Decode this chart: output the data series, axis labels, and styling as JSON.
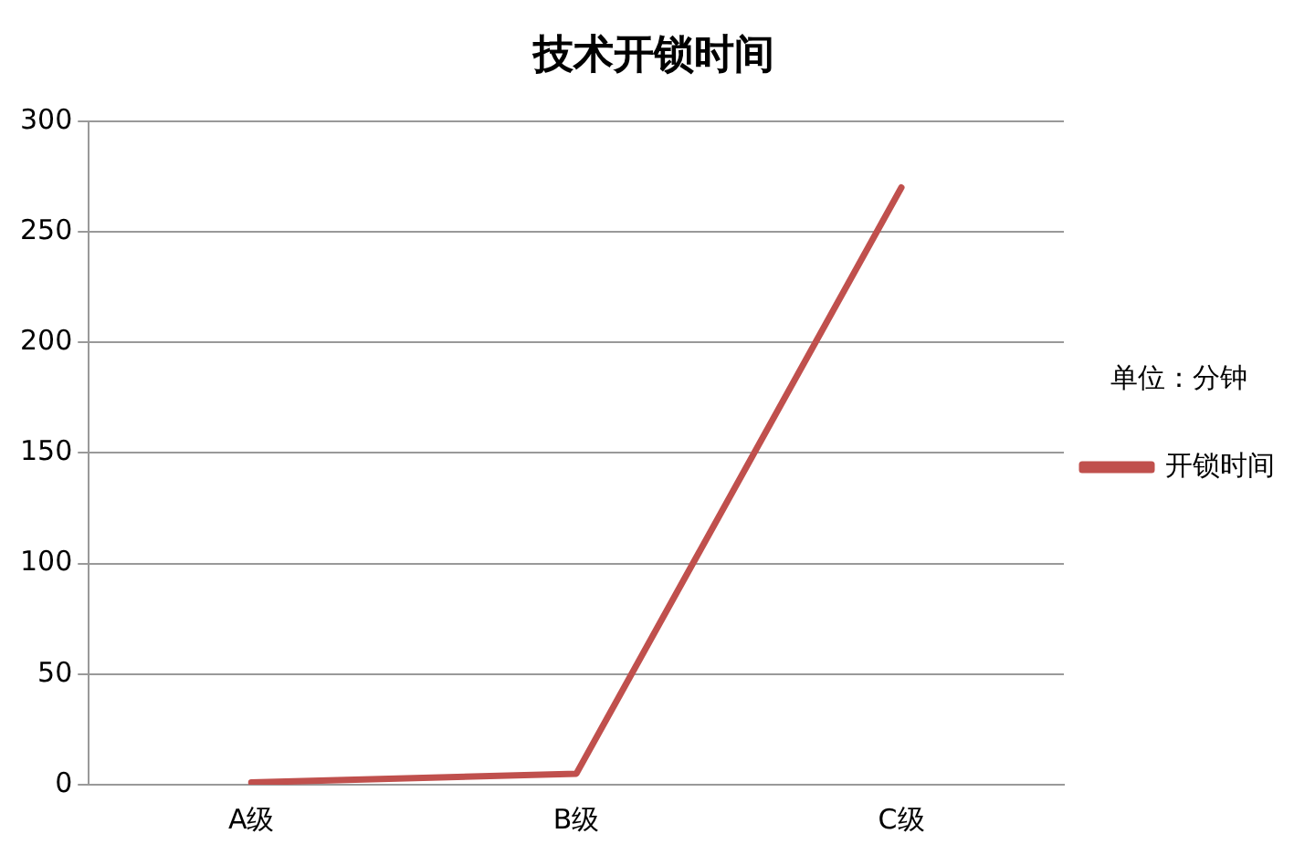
{
  "chart_data": {
    "type": "line",
    "title": "技术开锁时间",
    "legend_title": "单位：分钟",
    "categories": [
      "A级",
      "B级",
      "C级"
    ],
    "series": [
      {
        "name": "开锁时间",
        "color": "#c0504d",
        "values": [
          1,
          5,
          270
        ]
      }
    ],
    "ylim": [
      0,
      300
    ],
    "yticks": [
      0,
      50,
      100,
      150,
      200,
      250,
      300
    ],
    "grid": "y",
    "legend": "right",
    "marker": "none"
  }
}
